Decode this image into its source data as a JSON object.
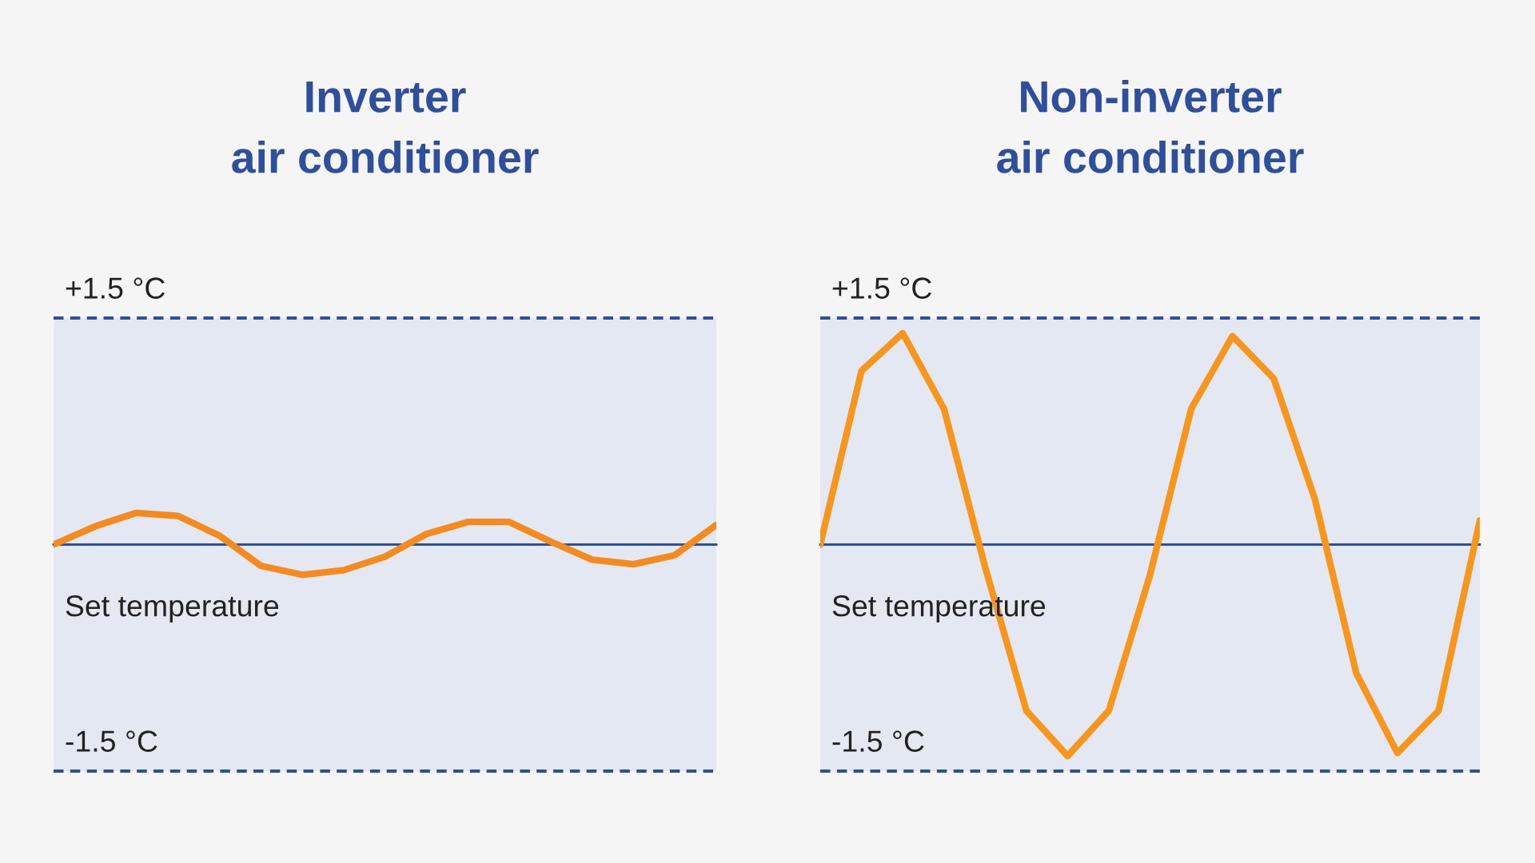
{
  "chart_data": [
    {
      "type": "line",
      "title": "Inverter\nair conditioner",
      "categories": [
        null,
        null,
        null,
        null,
        null,
        null,
        null,
        null,
        null,
        null,
        null,
        null,
        null,
        null,
        null,
        null,
        null
      ],
      "series": [
        {
          "color": "#f58a1f",
          "values": [
            0,
            0.12,
            0.21,
            0.19,
            0.06,
            -0.14,
            -0.2,
            -0.17,
            -0.08,
            0.07,
            0.15,
            0.15,
            0.02,
            -0.1,
            -0.13,
            -0.07,
            0.13
          ]
        }
      ],
      "ylim": [
        -1.5,
        1.5
      ],
      "ref_lines": [
        {
          "axis": "y",
          "value": 1.5,
          "label": "+1.5 °C",
          "color": "#2e4f9c",
          "line_style": "dashed"
        },
        {
          "axis": "y",
          "value": 0,
          "label": "Set temperature",
          "color": "#2e4f9c",
          "line_style": "solid"
        },
        {
          "axis": "y",
          "value": -1.5,
          "label": "-1.5 °C",
          "color": "#2e4f9c",
          "line_style": "dashed"
        }
      ]
    },
    {
      "type": "line",
      "title": "Non-inverter\nair conditioner",
      "categories": [
        null,
        null,
        null,
        null,
        null,
        null,
        null,
        null,
        null,
        null,
        null,
        null,
        null,
        null,
        null,
        null,
        null
      ],
      "series": [
        {
          "color": "#f7961d",
          "values": [
            0,
            1.15,
            1.4,
            0.9,
            -0.15,
            -1.1,
            -1.4,
            -1.1,
            -0.2,
            0.9,
            1.38,
            1.1,
            0.3,
            -0.85,
            -1.38,
            -1.1,
            0.16
          ]
        }
      ],
      "ylim": [
        -1.5,
        1.5
      ],
      "ref_lines": [
        {
          "axis": "y",
          "value": 1.5,
          "label": "+1.5 °C",
          "color": "#2e4f9c",
          "line_style": "dashed"
        },
        {
          "axis": "y",
          "value": 0,
          "label": "Set temperature",
          "color": "#2e4f9c",
          "line_style": "solid"
        },
        {
          "axis": "y",
          "value": -1.5,
          "label": "-1.5 °C",
          "color": "#2e4f9c",
          "line_style": "dashed"
        }
      ]
    }
  ]
}
